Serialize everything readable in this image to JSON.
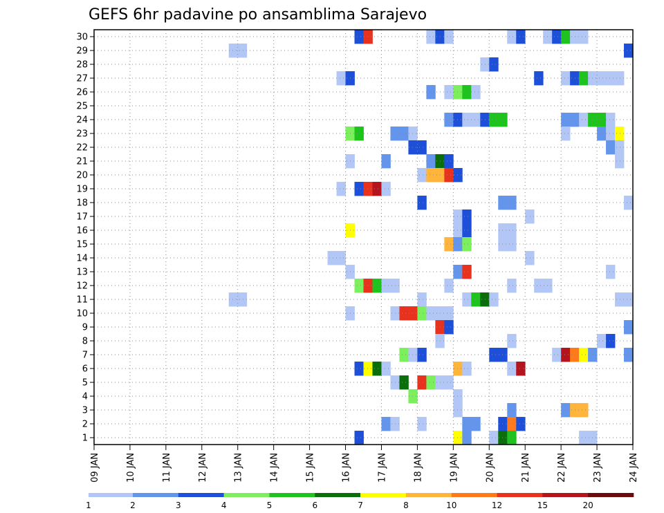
{
  "chart_data": {
    "type": "heatmap",
    "title": "GEFS 6hr padavine po ansamblima Sarajevo",
    "xlabel": "",
    "ylabel": "",
    "grid": true,
    "x_range": [
      0,
      60
    ],
    "y_range": [
      0.5,
      30.5
    ],
    "x_ticks": [
      {
        "x": 0,
        "label": "09 JAN"
      },
      {
        "x": 4,
        "label": "10 JAN"
      },
      {
        "x": 8,
        "label": "11 JAN"
      },
      {
        "x": 12,
        "label": "12 JAN"
      },
      {
        "x": 16,
        "label": "13 JAN"
      },
      {
        "x": 20,
        "label": "14 JAN"
      },
      {
        "x": 24,
        "label": "15 JAN"
      },
      {
        "x": 28,
        "label": "16 JAN"
      },
      {
        "x": 32,
        "label": "17 JAN"
      },
      {
        "x": 36,
        "label": "18 JAN"
      },
      {
        "x": 40,
        "label": "19 JAN"
      },
      {
        "x": 44,
        "label": "20 JAN"
      },
      {
        "x": 48,
        "label": "21 JAN"
      },
      {
        "x": 52,
        "label": "22 JAN"
      },
      {
        "x": 56,
        "label": "23 JAN"
      },
      {
        "x": 60,
        "label": "24 JAN"
      }
    ],
    "y_ticks": [
      "1",
      "2",
      "3",
      "4",
      "5",
      "6",
      "7",
      "8",
      "9",
      "10",
      "11",
      "12",
      "13",
      "14",
      "15",
      "16",
      "17",
      "18",
      "19",
      "20",
      "21",
      "22",
      "23",
      "24",
      "25",
      "26",
      "27",
      "28",
      "29",
      "30"
    ],
    "colorbar": {
      "colors": [
        "#b3c7f7",
        "#6495ed",
        "#1e4fd8",
        "#7cf05c",
        "#1ec31e",
        "#0a6e0a",
        "#ffff00",
        "#ffb43c",
        "#ff7a1a",
        "#e8321e",
        "#b4141e",
        "#6e0a0a"
      ],
      "labels": [
        "1",
        "2",
        "3",
        "4",
        "5",
        "6",
        "7",
        "8",
        "10",
        "12",
        "15",
        "20"
      ]
    },
    "cells": [
      [
        30,
        30,
        3
      ],
      [
        30,
        31,
        10
      ],
      [
        30,
        38,
        1
      ],
      [
        30,
        39,
        3
      ],
      [
        30,
        40,
        1
      ],
      [
        30,
        47,
        1
      ],
      [
        30,
        48,
        3
      ],
      [
        30,
        51,
        1
      ],
      [
        30,
        52,
        3
      ],
      [
        30,
        53,
        5
      ],
      [
        30,
        54,
        1
      ],
      [
        30,
        55,
        1
      ],
      [
        29,
        16,
        1
      ],
      [
        29,
        17,
        1
      ],
      [
        29,
        60,
        3
      ],
      [
        28,
        44,
        1
      ],
      [
        28,
        45,
        3
      ],
      [
        27,
        28,
        1
      ],
      [
        27,
        29,
        3
      ],
      [
        27,
        50,
        3
      ],
      [
        27,
        53,
        1
      ],
      [
        27,
        54,
        3
      ],
      [
        27,
        55,
        5
      ],
      [
        27,
        56,
        1
      ],
      [
        27,
        57,
        1
      ],
      [
        27,
        58,
        1
      ],
      [
        27,
        59,
        1
      ],
      [
        26,
        38,
        2
      ],
      [
        26,
        40,
        1
      ],
      [
        26,
        41,
        4
      ],
      [
        26,
        42,
        5
      ],
      [
        26,
        43,
        1
      ],
      [
        24,
        40,
        2
      ],
      [
        24,
        41,
        3
      ],
      [
        24,
        42,
        1
      ],
      [
        24,
        43,
        1
      ],
      [
        24,
        44,
        3
      ],
      [
        24,
        45,
        5
      ],
      [
        24,
        46,
        5
      ],
      [
        24,
        53,
        2
      ],
      [
        24,
        54,
        2
      ],
      [
        24,
        55,
        1
      ],
      [
        24,
        56,
        5
      ],
      [
        24,
        57,
        5
      ],
      [
        24,
        58,
        1
      ],
      [
        23,
        29,
        4
      ],
      [
        23,
        30,
        5
      ],
      [
        23,
        34,
        2
      ],
      [
        23,
        35,
        2
      ],
      [
        23,
        36,
        1
      ],
      [
        23,
        53,
        1
      ],
      [
        23,
        57,
        2
      ],
      [
        23,
        58,
        1
      ],
      [
        23,
        59,
        7
      ],
      [
        22,
        36,
        3
      ],
      [
        22,
        37,
        3
      ],
      [
        22,
        58,
        2
      ],
      [
        22,
        59,
        1
      ],
      [
        21,
        29,
        1
      ],
      [
        21,
        33,
        2
      ],
      [
        21,
        38,
        2
      ],
      [
        21,
        39,
        6
      ],
      [
        21,
        40,
        3
      ],
      [
        21,
        59,
        1
      ],
      [
        20,
        37,
        1
      ],
      [
        20,
        38,
        8
      ],
      [
        20,
        39,
        8
      ],
      [
        20,
        40,
        10
      ],
      [
        20,
        41,
        3
      ],
      [
        19,
        28,
        1
      ],
      [
        19,
        30,
        3
      ],
      [
        19,
        31,
        10
      ],
      [
        19,
        32,
        11
      ],
      [
        19,
        33,
        1
      ],
      [
        18,
        37,
        3
      ],
      [
        18,
        46,
        2
      ],
      [
        18,
        47,
        2
      ],
      [
        18,
        60,
        1
      ],
      [
        17,
        41,
        1
      ],
      [
        17,
        42,
        3
      ],
      [
        17,
        49,
        1
      ],
      [
        16,
        29,
        7
      ],
      [
        16,
        41,
        1
      ],
      [
        16,
        42,
        3
      ],
      [
        16,
        46,
        1
      ],
      [
        16,
        47,
        1
      ],
      [
        15,
        40,
        8
      ],
      [
        15,
        41,
        2
      ],
      [
        15,
        42,
        4
      ],
      [
        15,
        46,
        1
      ],
      [
        15,
        47,
        1
      ],
      [
        14,
        27,
        1
      ],
      [
        14,
        28,
        1
      ],
      [
        14,
        49,
        1
      ],
      [
        13,
        29,
        1
      ],
      [
        13,
        41,
        2
      ],
      [
        13,
        42,
        10
      ],
      [
        13,
        58,
        1
      ],
      [
        12,
        30,
        4
      ],
      [
        12,
        31,
        10
      ],
      [
        12,
        32,
        5
      ],
      [
        12,
        33,
        1
      ],
      [
        12,
        34,
        1
      ],
      [
        12,
        40,
        1
      ],
      [
        12,
        47,
        1
      ],
      [
        12,
        50,
        1
      ],
      [
        12,
        51,
        1
      ],
      [
        11,
        16,
        1
      ],
      [
        11,
        17,
        1
      ],
      [
        11,
        37,
        1
      ],
      [
        11,
        42,
        1
      ],
      [
        11,
        43,
        5
      ],
      [
        11,
        44,
        6
      ],
      [
        11,
        45,
        1
      ],
      [
        11,
        59,
        1
      ],
      [
        11,
        60,
        1
      ],
      [
        10,
        29,
        1
      ],
      [
        10,
        34,
        1
      ],
      [
        10,
        35,
        10
      ],
      [
        10,
        36,
        10
      ],
      [
        10,
        37,
        4
      ],
      [
        10,
        38,
        1
      ],
      [
        10,
        39,
        1
      ],
      [
        10,
        40,
        1
      ],
      [
        9,
        39,
        10
      ],
      [
        9,
        40,
        3
      ],
      [
        9,
        60,
        2
      ],
      [
        8,
        39,
        1
      ],
      [
        8,
        47,
        1
      ],
      [
        8,
        57,
        1
      ],
      [
        8,
        58,
        3
      ],
      [
        7,
        35,
        4
      ],
      [
        7,
        36,
        1
      ],
      [
        7,
        37,
        3
      ],
      [
        7,
        45,
        3
      ],
      [
        7,
        46,
        3
      ],
      [
        7,
        52,
        1
      ],
      [
        7,
        53,
        11
      ],
      [
        7,
        54,
        9
      ],
      [
        7,
        55,
        7
      ],
      [
        7,
        56,
        2
      ],
      [
        7,
        60,
        2
      ],
      [
        6,
        30,
        3
      ],
      [
        6,
        31,
        7
      ],
      [
        6,
        32,
        6
      ],
      [
        6,
        33,
        1
      ],
      [
        6,
        41,
        8
      ],
      [
        6,
        42,
        1
      ],
      [
        6,
        47,
        1
      ],
      [
        6,
        48,
        11
      ],
      [
        5,
        34,
        1
      ],
      [
        5,
        35,
        6
      ],
      [
        5,
        37,
        10
      ],
      [
        5,
        38,
        4
      ],
      [
        5,
        39,
        1
      ],
      [
        5,
        40,
        1
      ],
      [
        4,
        36,
        4
      ],
      [
        4,
        41,
        1
      ],
      [
        3,
        41,
        1
      ],
      [
        3,
        47,
        2
      ],
      [
        3,
        53,
        2
      ],
      [
        3,
        54,
        8
      ],
      [
        3,
        55,
        8
      ],
      [
        2,
        33,
        2
      ],
      [
        2,
        34,
        1
      ],
      [
        2,
        37,
        1
      ],
      [
        2,
        42,
        2
      ],
      [
        2,
        43,
        2
      ],
      [
        2,
        46,
        3
      ],
      [
        2,
        47,
        9
      ],
      [
        2,
        48,
        3
      ],
      [
        1,
        30,
        3
      ],
      [
        1,
        41,
        7
      ],
      [
        1,
        42,
        2
      ],
      [
        1,
        45,
        1
      ],
      [
        1,
        46,
        6
      ],
      [
        1,
        47,
        5
      ],
      [
        1,
        55,
        1
      ],
      [
        1,
        56,
        1
      ]
    ]
  }
}
